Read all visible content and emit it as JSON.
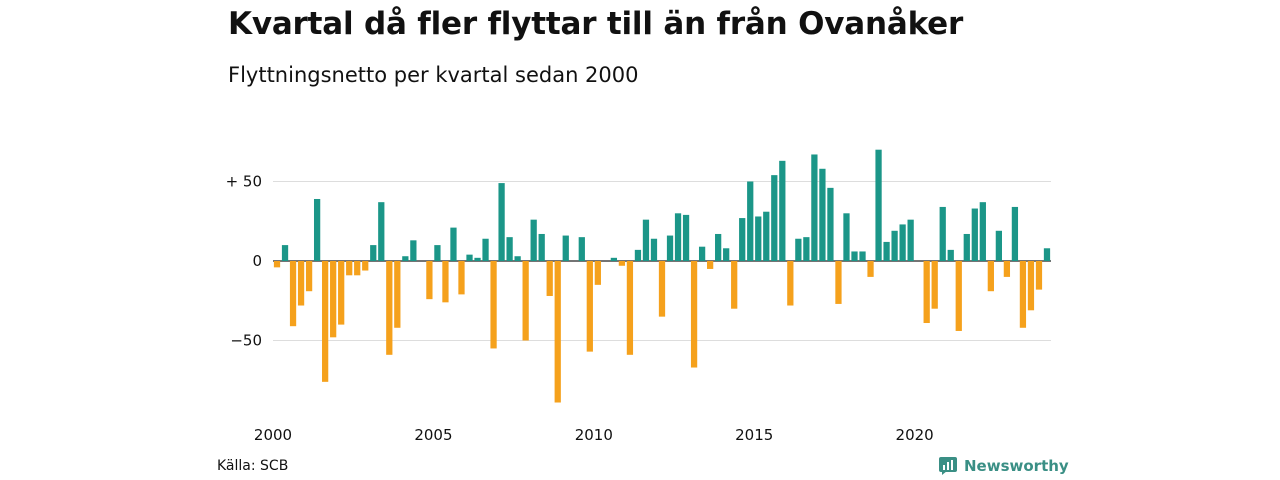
{
  "header": {
    "title": "Kvartal då fler flyttar till än från Ovanåker",
    "subtitle": "Flyttningsnetto per kvartal sedan 2000"
  },
  "footer": {
    "source": "Källa: SCB",
    "brand": "Newsworthy",
    "brand_icon": "newsworthy-logo-icon"
  },
  "colors": {
    "positive": "#1b9688",
    "negative": "#f5a11c",
    "grid": "#dddddd",
    "axis": "#222222"
  },
  "chart_data": {
    "type": "bar",
    "title": "Kvartal då fler flyttar till än från Ovanåker",
    "subtitle": "Flyttningsnetto per kvartal sedan 2000",
    "xlabel": "",
    "ylabel": "",
    "ylim": [
      -93,
      75
    ],
    "y_ticks": [
      50,
      0,
      -50
    ],
    "y_tick_labels": [
      "+ 50",
      "0",
      "−50"
    ],
    "x_ticks": [
      2000,
      2005,
      2010,
      2015,
      2020
    ],
    "x_tick_labels": [
      "2000",
      "2005",
      "2010",
      "2015",
      "2020"
    ],
    "grid": true,
    "legend": "none",
    "start_year": 2000,
    "values": [
      -4,
      10,
      -41,
      -28,
      -19,
      39,
      -76,
      -48,
      -40,
      -9,
      -9,
      -6,
      10,
      37,
      -59,
      -42,
      3,
      13,
      0,
      -24,
      10,
      -26,
      21,
      -21,
      4,
      2,
      14,
      -55,
      49,
      15,
      3,
      -50,
      26,
      17,
      -22,
      -89,
      16,
      0,
      15,
      -57,
      -15,
      0,
      2,
      -3,
      -59,
      7,
      26,
      14,
      -35,
      16,
      30,
      29,
      -67,
      9,
      -5,
      17,
      8,
      -30,
      27,
      50,
      28,
      31,
      54,
      63,
      -28,
      14,
      15,
      67,
      58,
      46,
      -27,
      30,
      6,
      6,
      -10,
      70,
      12,
      19,
      23,
      26,
      0,
      -39,
      -30,
      34,
      7,
      -44,
      17,
      33,
      37,
      -19,
      19,
      -10,
      34,
      -42,
      -31,
      -18,
      8
    ]
  }
}
